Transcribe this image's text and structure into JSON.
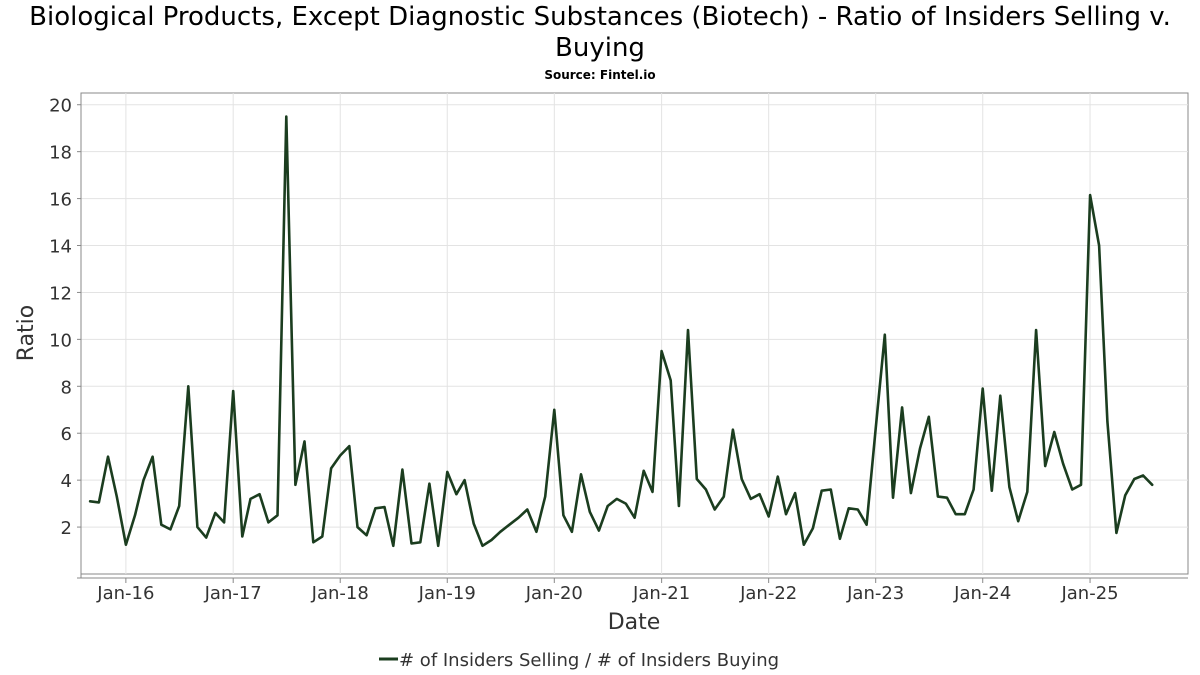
{
  "chart_data": {
    "type": "line",
    "title": "Biological Products, Except Diagnostic Substances (Biotech) - Ratio of Insiders Selling v. Buying",
    "subtitle": "Source: Fintel.io",
    "xlabel": "Date",
    "ylabel": "Ratio",
    "x_tick_labels": [
      "Jan-16",
      "Jan-17",
      "Jan-18",
      "Jan-19",
      "Jan-20",
      "Jan-21",
      "Jan-22",
      "Jan-23",
      "Jan-24",
      "Jan-25"
    ],
    "y_ticks": [
      2,
      4,
      6,
      8,
      10,
      12,
      14,
      16,
      18,
      20
    ],
    "ylim": [
      0,
      20.5
    ],
    "xlim": [
      "2015-08-01",
      "2025-12-01"
    ],
    "grid": true,
    "legend_position": "bottom",
    "series": [
      {
        "name": "# of Insiders Selling / # of Insiders Buying",
        "color": "#1b3d1f",
        "points": [
          [
            "2015-09-01",
            3.1
          ],
          [
            "2015-10-01",
            3.05
          ],
          [
            "2015-11-01",
            5.0
          ],
          [
            "2015-12-01",
            3.3
          ],
          [
            "2016-01-01",
            1.25
          ],
          [
            "2016-02-01",
            2.5
          ],
          [
            "2016-03-01",
            4.0
          ],
          [
            "2016-04-01",
            5.0
          ],
          [
            "2016-05-01",
            2.1
          ],
          [
            "2016-06-01",
            1.9
          ],
          [
            "2016-07-01",
            2.9
          ],
          [
            "2016-08-01",
            8.0
          ],
          [
            "2016-09-01",
            2.0
          ],
          [
            "2016-10-01",
            1.55
          ],
          [
            "2016-11-01",
            2.6
          ],
          [
            "2016-12-01",
            2.2
          ],
          [
            "2017-01-01",
            7.8
          ],
          [
            "2017-02-01",
            1.6
          ],
          [
            "2017-03-01",
            3.2
          ],
          [
            "2017-04-01",
            3.4
          ],
          [
            "2017-05-01",
            2.2
          ],
          [
            "2017-06-01",
            2.5
          ],
          [
            "2017-07-01",
            19.5
          ],
          [
            "2017-08-01",
            3.8
          ],
          [
            "2017-09-01",
            5.65
          ],
          [
            "2017-10-01",
            1.35
          ],
          [
            "2017-11-01",
            1.6
          ],
          [
            "2017-12-01",
            4.5
          ],
          [
            "2018-01-01",
            5.05
          ],
          [
            "2018-02-01",
            5.45
          ],
          [
            "2018-03-01",
            2.0
          ],
          [
            "2018-04-01",
            1.65
          ],
          [
            "2018-05-01",
            2.8
          ],
          [
            "2018-06-01",
            2.85
          ],
          [
            "2018-07-01",
            1.2
          ],
          [
            "2018-08-01",
            4.45
          ],
          [
            "2018-09-01",
            1.3
          ],
          [
            "2018-10-01",
            1.35
          ],
          [
            "2018-11-01",
            3.85
          ],
          [
            "2018-12-01",
            1.2
          ],
          [
            "2019-01-01",
            4.35
          ],
          [
            "2019-02-01",
            3.4
          ],
          [
            "2019-03-01",
            4.0
          ],
          [
            "2019-04-01",
            2.15
          ],
          [
            "2019-05-01",
            1.2
          ],
          [
            "2019-06-01",
            1.45
          ],
          [
            "2019-07-01",
            1.8
          ],
          [
            "2019-08-01",
            2.1
          ],
          [
            "2019-09-01",
            2.4
          ],
          [
            "2019-10-01",
            2.75
          ],
          [
            "2019-11-01",
            1.8
          ],
          [
            "2019-12-01",
            3.3
          ],
          [
            "2020-01-01",
            7.0
          ],
          [
            "2020-02-01",
            2.5
          ],
          [
            "2020-03-01",
            1.8
          ],
          [
            "2020-04-01",
            4.25
          ],
          [
            "2020-05-01",
            2.65
          ],
          [
            "2020-06-01",
            1.85
          ],
          [
            "2020-07-01",
            2.9
          ],
          [
            "2020-08-01",
            3.2
          ],
          [
            "2020-09-01",
            3.0
          ],
          [
            "2020-10-01",
            2.4
          ],
          [
            "2020-11-01",
            4.4
          ],
          [
            "2020-12-01",
            3.5
          ],
          [
            "2021-01-01",
            9.5
          ],
          [
            "2021-02-01",
            8.25
          ],
          [
            "2021-03-01",
            2.9
          ],
          [
            "2021-04-01",
            10.4
          ],
          [
            "2021-05-01",
            4.05
          ],
          [
            "2021-06-01",
            3.6
          ],
          [
            "2021-07-01",
            2.75
          ],
          [
            "2021-08-01",
            3.3
          ],
          [
            "2021-09-01",
            6.15
          ],
          [
            "2021-10-01",
            4.05
          ],
          [
            "2021-11-01",
            3.2
          ],
          [
            "2021-12-01",
            3.4
          ],
          [
            "2022-01-01",
            2.45
          ],
          [
            "2022-02-01",
            4.15
          ],
          [
            "2022-03-01",
            2.55
          ],
          [
            "2022-04-01",
            3.45
          ],
          [
            "2022-05-01",
            1.25
          ],
          [
            "2022-06-01",
            1.95
          ],
          [
            "2022-07-01",
            3.55
          ],
          [
            "2022-08-01",
            3.6
          ],
          [
            "2022-09-01",
            1.5
          ],
          [
            "2022-10-01",
            2.8
          ],
          [
            "2022-11-01",
            2.75
          ],
          [
            "2022-12-01",
            2.1
          ],
          [
            "2023-01-01",
            6.2
          ],
          [
            "2023-02-01",
            10.2
          ],
          [
            "2023-03-01",
            3.25
          ],
          [
            "2023-04-01",
            7.1
          ],
          [
            "2023-05-01",
            3.45
          ],
          [
            "2023-06-01",
            5.35
          ],
          [
            "2023-07-01",
            6.7
          ],
          [
            "2023-08-01",
            3.3
          ],
          [
            "2023-09-01",
            3.25
          ],
          [
            "2023-10-01",
            2.55
          ],
          [
            "2023-11-01",
            2.55
          ],
          [
            "2023-12-01",
            3.6
          ],
          [
            "2024-01-01",
            7.9
          ],
          [
            "2024-02-01",
            3.55
          ],
          [
            "2024-03-01",
            7.6
          ],
          [
            "2024-04-01",
            3.7
          ],
          [
            "2024-05-01",
            2.25
          ],
          [
            "2024-06-01",
            3.5
          ],
          [
            "2024-07-01",
            10.4
          ],
          [
            "2024-08-01",
            4.6
          ],
          [
            "2024-09-01",
            6.05
          ],
          [
            "2024-10-01",
            4.7
          ],
          [
            "2024-11-01",
            3.6
          ],
          [
            "2024-12-01",
            3.8
          ],
          [
            "2025-01-01",
            16.15
          ],
          [
            "2025-02-01",
            14.0
          ],
          [
            "2025-03-01",
            6.5
          ],
          [
            "2025-04-01",
            1.75
          ],
          [
            "2025-05-01",
            3.35
          ],
          [
            "2025-06-01",
            4.05
          ],
          [
            "2025-07-01",
            4.2
          ],
          [
            "2025-08-01",
            3.8
          ]
        ]
      }
    ]
  },
  "colors": {
    "line": "#1b3d1f",
    "grid": "#e3e3e3",
    "axis": "#888888",
    "text": "#333333"
  }
}
